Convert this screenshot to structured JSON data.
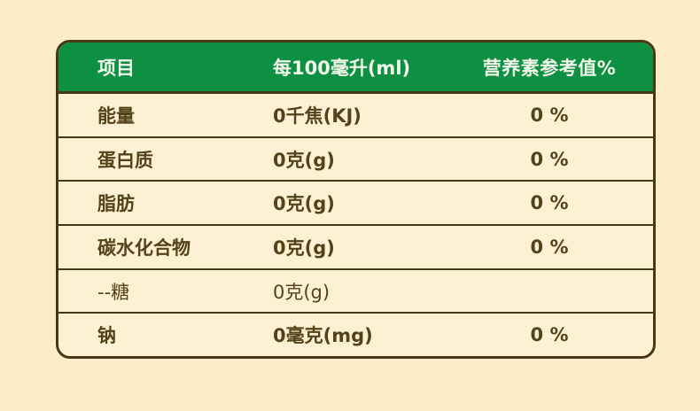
{
  "label": {
    "columns": {
      "item": "项目",
      "per100ml": "每100毫升(ml)",
      "nrv": "营养素参考值%"
    },
    "rows": [
      {
        "item": "能量",
        "per100ml": "0千焦(KJ)",
        "nrv": "0 %"
      },
      {
        "item": "蛋白质",
        "per100ml": "0克(g)",
        "nrv": "0 %"
      },
      {
        "item": "脂肪",
        "per100ml": "0克(g)",
        "nrv": "0 %"
      },
      {
        "item": "碳水化合物",
        "per100ml": "0克(g)",
        "nrv": "0 %"
      },
      {
        "item": "--糖",
        "per100ml": "0克(g)",
        "nrv": ""
      },
      {
        "item": "钠",
        "per100ml": "0毫克(mg)",
        "nrv": "0 %"
      }
    ],
    "colors": {
      "page_bg": "#fcecca",
      "cell_bg": "#fdf1d3",
      "border": "#463a16",
      "header_bg": "#0e9043",
      "header_text": "#f2f8e9",
      "body_text": "#54431a"
    }
  }
}
